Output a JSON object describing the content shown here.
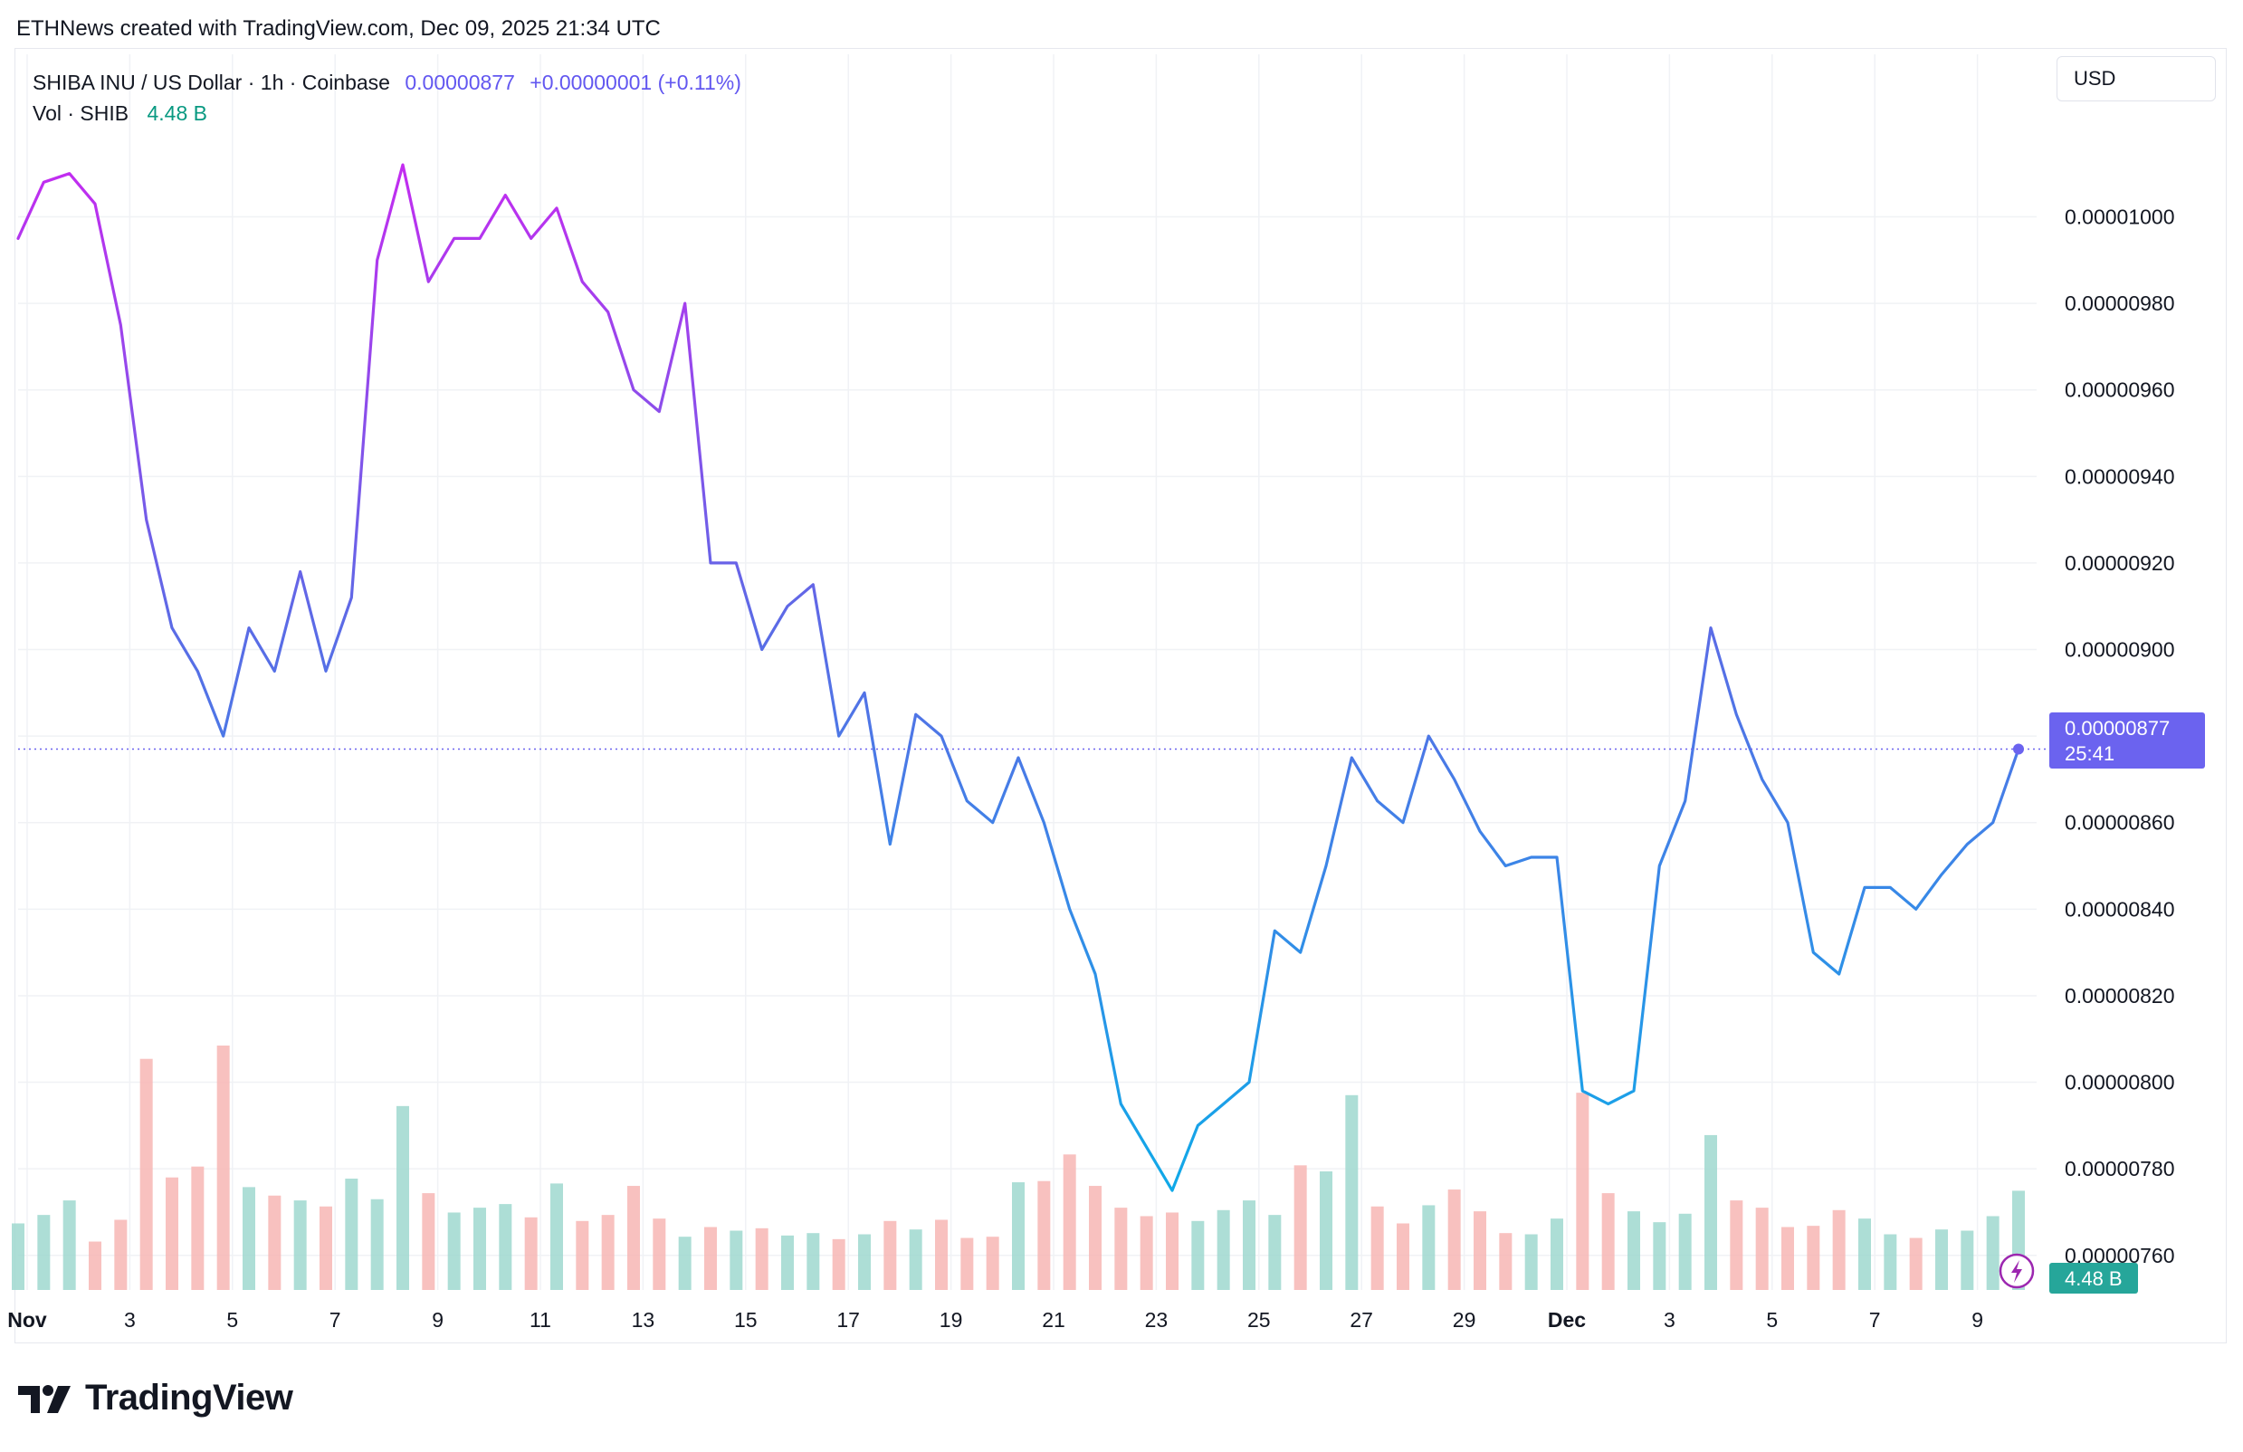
{
  "header": {
    "caption": "ETHNews created with TradingView.com, Dec 09, 2025 21:34 UTC"
  },
  "legend": {
    "symbol": "SHIBA INU / US Dollar · 1h · Coinbase",
    "price": "0.00000877",
    "change": "+0.00000001 (+0.11%)",
    "volume_label": "Vol · SHIB",
    "volume_value": "4.48 B"
  },
  "toolbar": {
    "currency_label": "USD"
  },
  "footer": {
    "logo_text": "TradingView",
    "logo_icon": "tradingview-logo-icon"
  },
  "badges": {
    "last_price": "0.00000877",
    "countdown": "25:41",
    "volume": "4.48 B",
    "alert_icon": "lightning-icon"
  },
  "colors": {
    "price_line_start": "#c32cf0",
    "price_line_mid": "#5b6be6",
    "price_line_low": "#10a9e8",
    "last_price_badge": "#6b63ef",
    "volume_badge": "#26a69a",
    "volume_up": "#9fd8cf",
    "volume_down": "#f7b6b4",
    "grid": "#f0f2f5"
  },
  "chart_data": {
    "type": "line",
    "ylim": [
      7.52e-06,
      1.025e-05
    ],
    "y_ticks": [
      "0.00001000",
      "0.00000980",
      "0.00000960",
      "0.00000940",
      "0.00000920",
      "0.00000900",
      "0.00000880",
      "0.00000860",
      "0.00000840",
      "0.00000820",
      "0.00000800",
      "0.00000780",
      "0.00000760"
    ],
    "x_ticks": [
      "Nov",
      "3",
      "5",
      "7",
      "9",
      "11",
      "13",
      "15",
      "17",
      "19",
      "21",
      "23",
      "25",
      "27",
      "29",
      "Dec",
      "3",
      "5",
      "7",
      "9"
    ],
    "grid": true,
    "x": [
      "Nov 1 00:00",
      "Nov 1 12:00",
      "Nov 2 00:00",
      "Nov 2 12:00",
      "Nov 3 00:00",
      "Nov 3 12:00",
      "Nov 4 00:00",
      "Nov 4 12:00",
      "Nov 5 00:00",
      "Nov 5 12:00",
      "Nov 6 00:00",
      "Nov 6 12:00",
      "Nov 7 00:00",
      "Nov 7 12:00",
      "Nov 8 00:00",
      "Nov 8 12:00",
      "Nov 9 00:00",
      "Nov 9 12:00",
      "Nov 10 00:00",
      "Nov 10 12:00",
      "Nov 11 00:00",
      "Nov 11 12:00",
      "Nov 12 00:00",
      "Nov 12 12:00",
      "Nov 13 00:00",
      "Nov 13 12:00",
      "Nov 14 00:00",
      "Nov 14 12:00",
      "Nov 15 00:00",
      "Nov 15 12:00",
      "Nov 16 00:00",
      "Nov 16 12:00",
      "Nov 17 00:00",
      "Nov 17 12:00",
      "Nov 18 00:00",
      "Nov 18 12:00",
      "Nov 19 00:00",
      "Nov 19 12:00",
      "Nov 20 00:00",
      "Nov 20 12:00",
      "Nov 21 00:00",
      "Nov 21 12:00",
      "Nov 22 00:00",
      "Nov 22 12:00",
      "Nov 23 00:00",
      "Nov 23 12:00",
      "Nov 24 00:00",
      "Nov 24 12:00",
      "Nov 25 00:00",
      "Nov 25 12:00",
      "Nov 26 00:00",
      "Nov 26 12:00",
      "Nov 27 00:00",
      "Nov 27 12:00",
      "Nov 28 00:00",
      "Nov 28 12:00",
      "Nov 29 00:00",
      "Nov 29 12:00",
      "Nov 30 00:00",
      "Nov 30 12:00",
      "Dec 1 00:00",
      "Dec 1 12:00",
      "Dec 2 00:00",
      "Dec 2 12:00",
      "Dec 3 00:00",
      "Dec 3 12:00",
      "Dec 4 00:00",
      "Dec 4 12:00",
      "Dec 5 00:00",
      "Dec 5 12:00",
      "Dec 6 00:00",
      "Dec 6 12:00",
      "Dec 7 00:00",
      "Dec 7 12:00",
      "Dec 8 00:00",
      "Dec 8 12:00",
      "Dec 9 00:00",
      "Dec 9 12:00",
      "Dec 9 21:00"
    ],
    "series": [
      {
        "values": [
          9.95e-06,
          1.008e-05,
          1.01e-05,
          1.003e-05,
          9.75e-06,
          9.3e-06,
          9.05e-06,
          8.95e-06,
          8.8e-06,
          9.05e-06,
          8.95e-06,
          9.18e-06,
          8.95e-06,
          9.12e-06,
          9.9e-06,
          1.012e-05,
          9.85e-06,
          9.95e-06,
          9.95e-06,
          1.005e-05,
          9.95e-06,
          1.002e-05,
          9.85e-06,
          9.78e-06,
          9.6e-06,
          9.55e-06,
          9.8e-06,
          9.2e-06,
          9.2e-06,
          9e-06,
          9.1e-06,
          9.15e-06,
          8.8e-06,
          8.9e-06,
          8.55e-06,
          8.85e-06,
          8.8e-06,
          8.65e-06,
          8.6e-06,
          8.75e-06,
          8.6e-06,
          8.4e-06,
          8.25e-06,
          7.95e-06,
          7.85e-06,
          7.75e-06,
          7.9e-06,
          7.95e-06,
          8e-06,
          8.35e-06,
          8.3e-06,
          8.5e-06,
          8.75e-06,
          8.65e-06,
          8.6e-06,
          8.8e-06,
          8.7e-06,
          8.58e-06,
          8.5e-06,
          8.52e-06,
          8.52e-06,
          7.98e-06,
          7.95e-06,
          7.98e-06,
          8.5e-06,
          8.65e-06,
          9.05e-06,
          8.85e-06,
          8.7e-06,
          8.6e-06,
          8.3e-06,
          8.25e-06,
          8.45e-06,
          8.45e-06,
          8.4e-06,
          8.48e-06,
          8.55e-06,
          8.6e-06,
          8.77e-06
        ]
      }
    ],
    "volume": {
      "label": "Vol · SHIB",
      "values": [
        0.55,
        0.62,
        0.74,
        0.4,
        0.58,
        1.91,
        0.93,
        1.02,
        2.02,
        0.85,
        0.78,
        0.74,
        0.69,
        0.92,
        0.75,
        1.52,
        0.8,
        0.64,
        0.68,
        0.71,
        0.6,
        0.88,
        0.57,
        0.62,
        0.86,
        0.59,
        0.44,
        0.52,
        0.49,
        0.51,
        0.45,
        0.47,
        0.42,
        0.46,
        0.57,
        0.5,
        0.58,
        0.43,
        0.44,
        0.89,
        0.9,
        1.12,
        0.86,
        0.68,
        0.61,
        0.64,
        0.57,
        0.66,
        0.74,
        0.62,
        1.03,
        0.98,
        1.61,
        0.69,
        0.55,
        0.7,
        0.83,
        0.65,
        0.47,
        0.46,
        0.59,
        1.63,
        0.8,
        0.65,
        0.56,
        0.63,
        1.28,
        0.74,
        0.68,
        0.52,
        0.53,
        0.66,
        0.59,
        0.46,
        0.43,
        0.5,
        0.49,
        0.61,
        0.82
      ],
      "unit": "B"
    }
  }
}
